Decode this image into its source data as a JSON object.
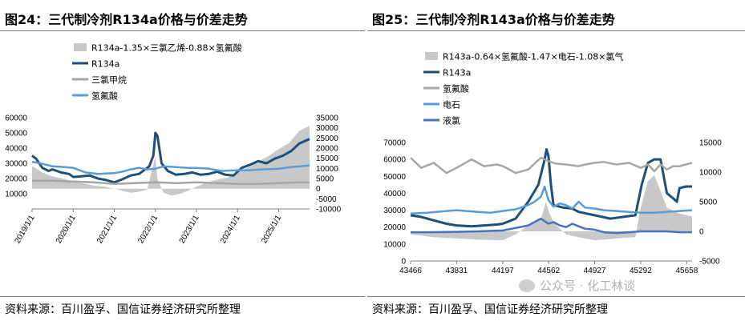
{
  "panels": [
    {
      "title": "图24：三代制冷剂R134a价格与价差走势",
      "source": "资料来源：百川盈孚、国信证券经济研究所整理"
    },
    {
      "title": "图25：三代制冷剂R143a价格与价差走势",
      "source": "资料来源：百川盈孚、国信证券经济研究所整理"
    }
  ],
  "watermark": "公众号 · 化工林谈",
  "colors": {
    "spread": "#c8c8c8",
    "product": "#1f4e79",
    "gray_line": "#a6a6a6",
    "light_blue": "#5b9bd5",
    "royal_blue": "#4472c4"
  },
  "chart_data": [
    {
      "type": "line",
      "x_ticks": [
        "2019/1/1",
        "2020/1/1",
        "2021/1/1",
        "2022/1/1",
        "2023/1/1",
        "2024/1/1",
        "2025/1/1"
      ],
      "x_range": [
        2019.0,
        2025.75
      ],
      "y_left": {
        "min": 0,
        "max": 60000,
        "ticks": [
          10000,
          20000,
          30000,
          40000,
          50000,
          60000
        ]
      },
      "y_right": {
        "min": -10000,
        "max": 35000,
        "ticks": [
          -10000,
          -5000,
          0,
          5000,
          10000,
          15000,
          20000,
          25000,
          30000,
          35000
        ]
      },
      "series": [
        {
          "name": "R134a-1.35×三氯乙烯-0.88×氢氟酸",
          "kind": "area",
          "axis": "right",
          "x": [
            2019.0,
            2019.1,
            2019.25,
            2019.5,
            2019.75,
            2020.0,
            2020.25,
            2020.5,
            2020.75,
            2021.0,
            2021.2,
            2021.4,
            2021.6,
            2021.8,
            2021.9,
            2022.0,
            2022.05,
            2022.2,
            2022.4,
            2022.6,
            2022.8,
            2023.0,
            2023.25,
            2023.5,
            2023.75,
            2024.0,
            2024.25,
            2024.5,
            2024.75,
            2025.0,
            2025.25,
            2025.5,
            2025.75
          ],
          "y": [
            11000,
            10000,
            8000,
            6000,
            5000,
            3500,
            2500,
            1500,
            1000,
            0,
            -1000,
            -2000,
            -1500,
            -500,
            8000,
            16000,
            5000,
            -2000,
            -3500,
            -2500,
            -1000,
            1000,
            3000,
            4500,
            5500,
            8000,
            10500,
            13500,
            16000,
            19500,
            22500,
            28500,
            31000
          ]
        },
        {
          "name": "R134a",
          "kind": "line",
          "axis": "left",
          "x": [
            2019.0,
            2019.1,
            2019.25,
            2019.4,
            2019.5,
            2019.7,
            2019.9,
            2020.0,
            2020.2,
            2020.4,
            2020.6,
            2020.8,
            2021.0,
            2021.2,
            2021.4,
            2021.6,
            2021.75,
            2021.85,
            2021.95,
            2022.0,
            2022.05,
            2022.15,
            2022.3,
            2022.5,
            2022.7,
            2022.9,
            2023.1,
            2023.3,
            2023.5,
            2023.7,
            2023.9,
            2024.1,
            2024.3,
            2024.5,
            2024.7,
            2024.9,
            2025.1,
            2025.3,
            2025.5,
            2025.75
          ],
          "y": [
            35000,
            33000,
            27000,
            25000,
            26000,
            24000,
            23000,
            21000,
            21500,
            22000,
            20000,
            19000,
            17500,
            19500,
            22000,
            23000,
            26000,
            28000,
            35000,
            50000,
            48000,
            30000,
            25000,
            22500,
            23000,
            24000,
            22500,
            23000,
            24500,
            22500,
            22000,
            27000,
            29000,
            31500,
            30000,
            33000,
            35000,
            38000,
            43000,
            46000
          ]
        },
        {
          "name": "三氯甲烷",
          "kind": "line",
          "axis": "left",
          "x": [
            2019.0,
            2019.5,
            2020.0,
            2020.5,
            2021.0,
            2021.5,
            2022.0,
            2022.5,
            2023.0,
            2023.5,
            2024.0,
            2024.5,
            2025.0,
            2025.5,
            2025.75
          ],
          "y": [
            18500,
            18500,
            18000,
            17500,
            16500,
            17000,
            17500,
            17000,
            17500,
            17000,
            16500,
            16500,
            17000,
            17500,
            17500
          ]
        },
        {
          "name": "氢氟酸",
          "kind": "line",
          "axis": "left",
          "x": [
            2019.0,
            2019.2,
            2019.5,
            2019.8,
            2020.0,
            2020.3,
            2020.6,
            2021.0,
            2021.2,
            2021.4,
            2021.6,
            2021.8,
            2022.0,
            2022.2,
            2022.5,
            2022.8,
            2023.0,
            2023.3,
            2023.6,
            2024.0,
            2024.3,
            2024.6,
            2025.0,
            2025.3,
            2025.5,
            2025.75
          ],
          "y": [
            31000,
            30000,
            28000,
            27500,
            27000,
            24000,
            23000,
            23500,
            24500,
            26000,
            27000,
            26000,
            26500,
            28000,
            27500,
            27000,
            27000,
            26500,
            25000,
            25500,
            25500,
            26000,
            26500,
            27500,
            28000,
            28500
          ]
        }
      ]
    },
    {
      "type": "line",
      "x_ticks": [
        43466,
        43831,
        44197,
        44562,
        44927,
        45292,
        45658
      ],
      "x_range": [
        43466,
        45700
      ],
      "y_left": {
        "min": 0,
        "max": 70000,
        "ticks": [
          0,
          10000,
          20000,
          30000,
          40000,
          50000,
          60000,
          70000
        ]
      },
      "y_right": {
        "min": -5000,
        "max": 15000,
        "ticks": [
          -5000,
          0,
          5000,
          10000,
          15000
        ]
      },
      "series": [
        {
          "name": "R143a-0.64×氢氟酸-1.47×电石-1.08×氯气",
          "kind": "area",
          "axis": "right",
          "x": [
            43466,
            43550,
            43650,
            43831,
            44000,
            44197,
            44300,
            44400,
            44500,
            44540,
            44560,
            44600,
            44700,
            44800,
            44927,
            45050,
            45150,
            45250,
            45292,
            45350,
            45400,
            45500,
            45600,
            45700
          ],
          "y": [
            -500,
            -700,
            -1000,
            -1200,
            -1400,
            -1500,
            -500,
            1000,
            2000,
            5000,
            3500,
            1500,
            -500,
            -1000,
            -1500,
            -1300,
            -1100,
            -1000,
            4000,
            8500,
            9500,
            4000,
            3000,
            2500
          ]
        },
        {
          "name": "R143a",
          "kind": "line",
          "axis": "left",
          "x": [
            43466,
            43550,
            43650,
            43750,
            43831,
            43950,
            44050,
            44150,
            44197,
            44300,
            44400,
            44480,
            44530,
            44545,
            44560,
            44580,
            44600,
            44680,
            44750,
            44800,
            44927,
            45050,
            45150,
            45250,
            45300,
            45350,
            45400,
            45450,
            45500,
            45550,
            45580,
            45600,
            45650,
            45700
          ],
          "y": [
            27000,
            26000,
            24000,
            22000,
            21000,
            20500,
            21000,
            21500,
            22000,
            25000,
            35000,
            45000,
            60000,
            66000,
            62000,
            45000,
            33000,
            31500,
            31000,
            29000,
            27000,
            25000,
            26000,
            27000,
            45000,
            58000,
            60000,
            60000,
            40000,
            37000,
            35000,
            43000,
            44000,
            44000
          ]
        },
        {
          "name": "氢氟酸",
          "kind": "line",
          "axis": "left",
          "x": [
            43466,
            43550,
            43650,
            43750,
            43831,
            43950,
            44050,
            44150,
            44197,
            44250,
            44300,
            44400,
            44500,
            44560,
            44620,
            44700,
            44800,
            44850,
            44927,
            45000,
            45100,
            45200,
            45292,
            45350,
            45400,
            45450,
            45500,
            45550,
            45600,
            45650,
            45700
          ],
          "y": [
            61000,
            55000,
            58000,
            52000,
            55000,
            60000,
            56000,
            57000,
            56000,
            54000,
            52000,
            54000,
            61000,
            59000,
            57500,
            57000,
            56000,
            57000,
            58000,
            58500,
            57000,
            58000,
            55000,
            57000,
            53000,
            57000,
            54000,
            56000,
            56000,
            57000,
            58000
          ]
        },
        {
          "name": "电石",
          "kind": "line",
          "axis": "left",
          "x": [
            43466,
            43600,
            43750,
            43831,
            44000,
            44100,
            44197,
            44300,
            44400,
            44450,
            44500,
            44530,
            44560,
            44600,
            44650,
            44700,
            44750,
            44800,
            44850,
            44927,
            45000,
            45100,
            45200,
            45292,
            45400,
            45500,
            45600,
            45700
          ],
          "y": [
            28000,
            28500,
            29500,
            30000,
            29000,
            28500,
            29500,
            30500,
            33000,
            35000,
            38000,
            44000,
            36000,
            32000,
            34000,
            33000,
            31000,
            35000,
            31500,
            31000,
            30000,
            29500,
            29000,
            28500,
            28500,
            29000,
            29500,
            30000
          ]
        },
        {
          "name": "液氯",
          "kind": "line",
          "axis": "left",
          "x": [
            43466,
            43600,
            43831,
            44000,
            44197,
            44300,
            44400,
            44500,
            44560,
            44600,
            44650,
            44700,
            44750,
            44800,
            44850,
            44927,
            45000,
            45100,
            45200,
            45292,
            45400,
            45500,
            45600,
            45700
          ],
          "y": [
            17000,
            17000,
            17200,
            17500,
            18000,
            19500,
            21000,
            25000,
            22000,
            23000,
            21000,
            20000,
            22000,
            20500,
            19000,
            18500,
            17000,
            16500,
            17000,
            17500,
            17500,
            17500,
            17000,
            17000
          ]
        }
      ]
    }
  ]
}
